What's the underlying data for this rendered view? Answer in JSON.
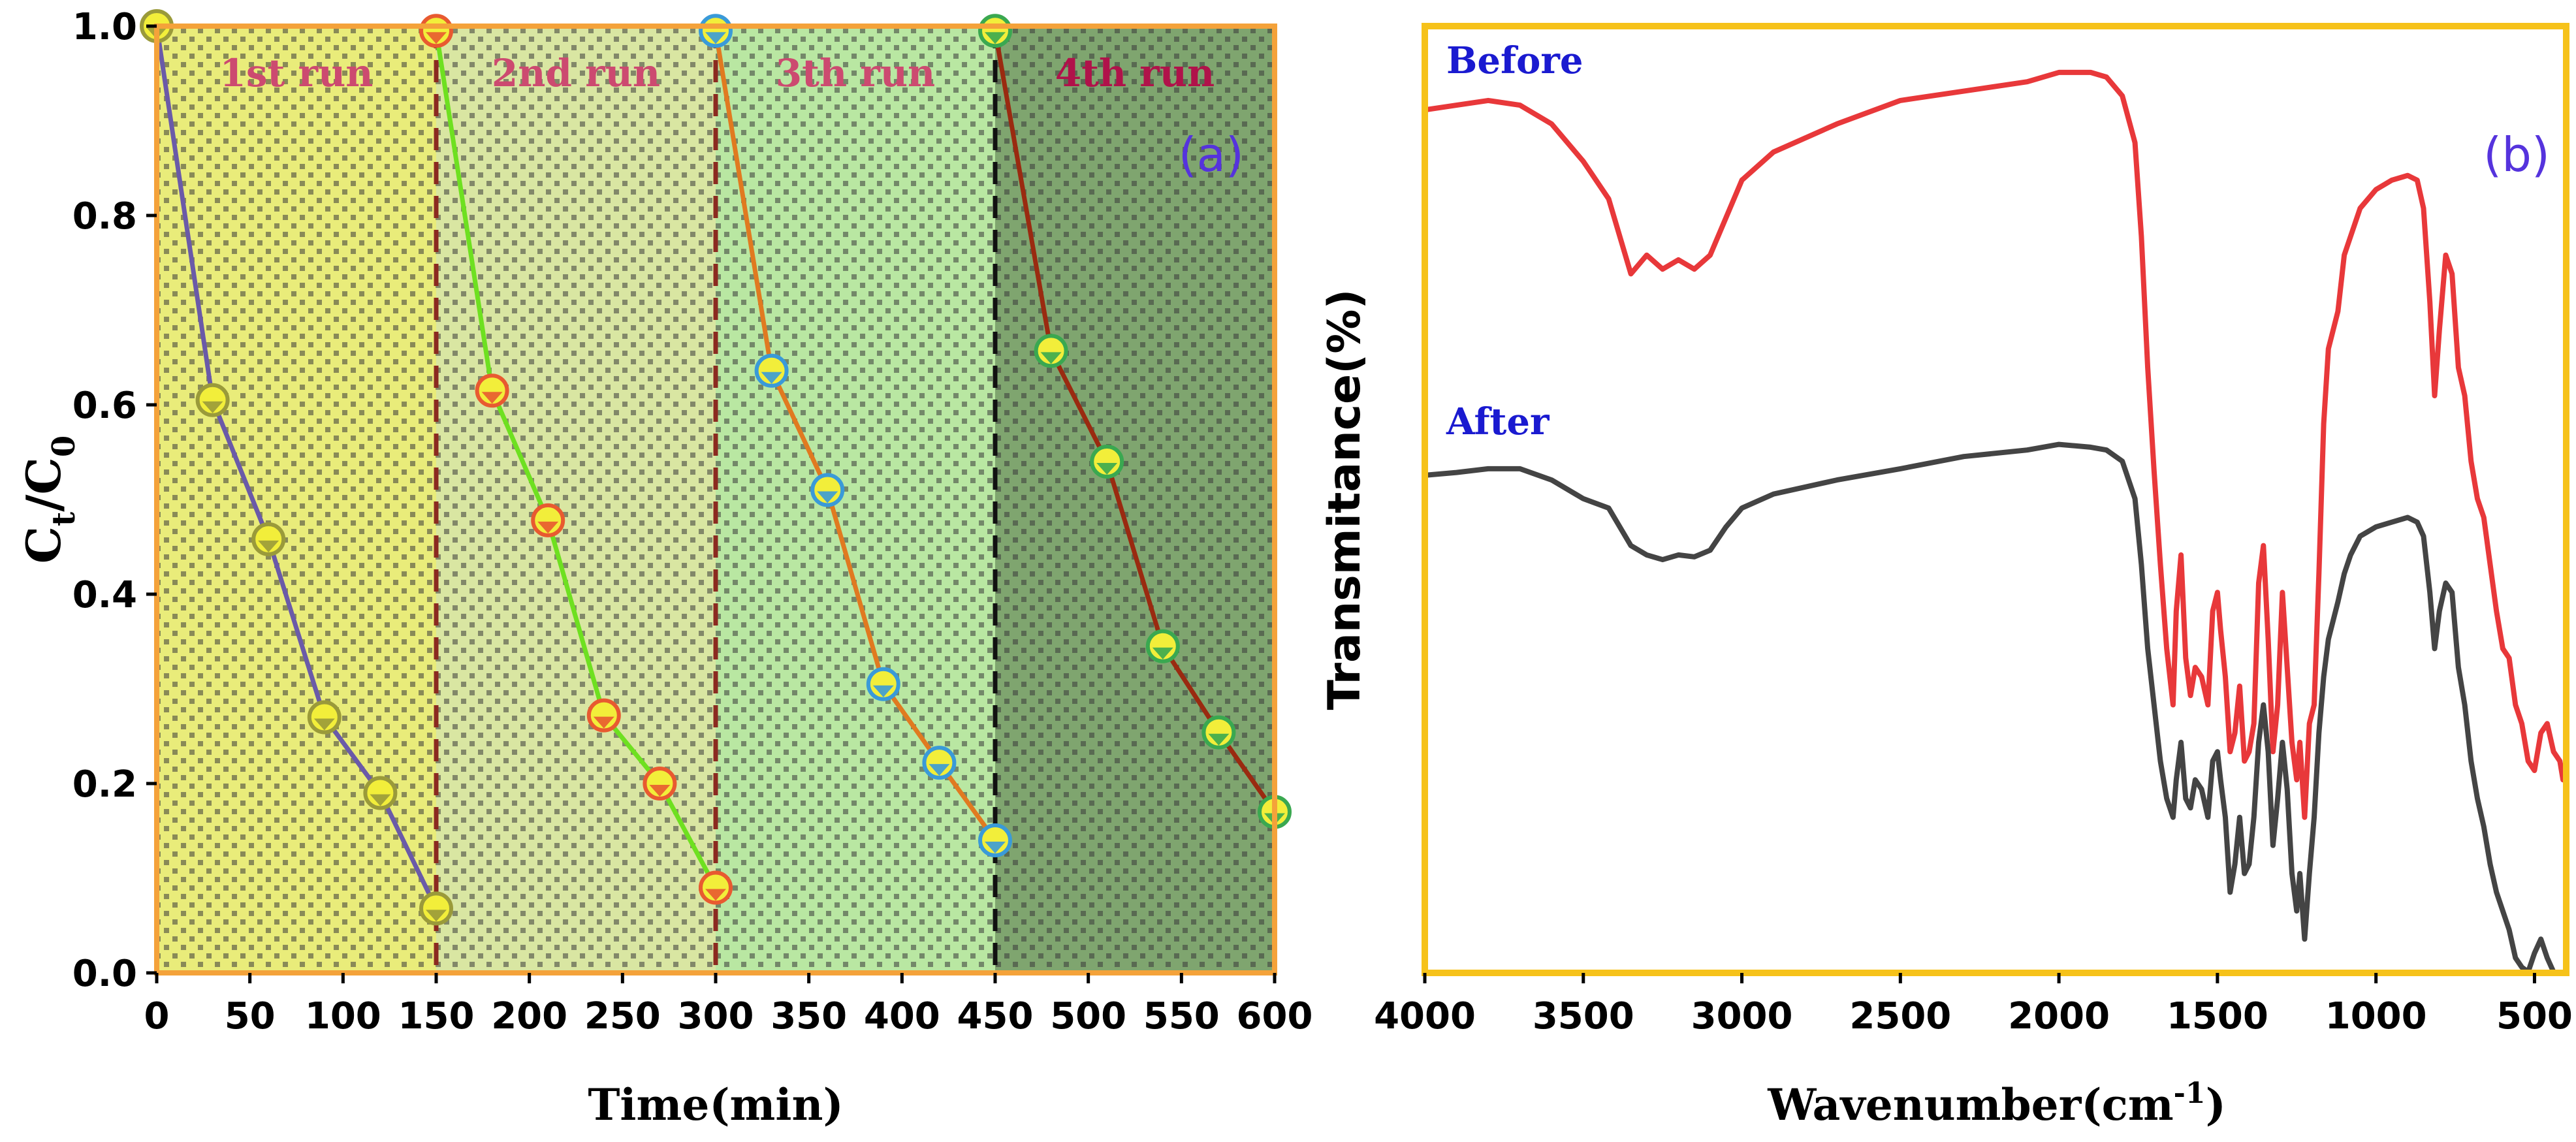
{
  "chart_data": [
    {
      "type": "line",
      "panel_label": "(a)",
      "xlabel": "Time(min)",
      "ylabel_main": "C",
      "ylabel_sub1": "t",
      "ylabel_mid": "/C",
      "ylabel_sub2": "0",
      "xlim": [
        0,
        600
      ],
      "ylim": [
        0,
        1.0
      ],
      "xticks": [
        0,
        50,
        100,
        150,
        200,
        250,
        300,
        350,
        400,
        450,
        500,
        550,
        600
      ],
      "yticks": [
        0.0,
        0.2,
        0.4,
        0.6,
        0.8,
        1.0
      ],
      "regions": [
        {
          "label": "1st run",
          "x0": 0,
          "x1": 150,
          "color": "#e9ec7a"
        },
        {
          "label": "2nd run",
          "x0": 150,
          "x1": 300,
          "color": "#d9e6a2"
        },
        {
          "label": "3th run",
          "x0": 300,
          "x1": 450,
          "color": "#b9e7a2"
        },
        {
          "label": "4th run",
          "x0": 450,
          "x1": 600,
          "color": "#7fa56f"
        }
      ],
      "dividers": [
        {
          "x": 150,
          "color": "#8b2a20"
        },
        {
          "x": 300,
          "color": "#8b2a20"
        },
        {
          "x": 450,
          "color": "#111111"
        }
      ],
      "series": [
        {
          "name": "1st run",
          "color": "#6a5aa8",
          "marker_color": "#9a9a3a",
          "x": [
            0,
            30,
            60,
            90,
            120,
            150
          ],
          "y": [
            1.0,
            0.605,
            0.458,
            0.27,
            0.19,
            0.068
          ]
        },
        {
          "name": "2nd run",
          "color": "#6ee020",
          "marker_color": "#e85a30",
          "x": [
            150,
            180,
            210,
            240,
            270,
            300
          ],
          "y": [
            0.995,
            0.615,
            0.478,
            0.272,
            0.2,
            0.09
          ]
        },
        {
          "name": "3th run",
          "color": "#e07a20",
          "marker_color": "#3a9ad8",
          "x": [
            300,
            330,
            360,
            390,
            420,
            450
          ],
          "y": [
            0.995,
            0.636,
            0.51,
            0.305,
            0.222,
            0.14
          ]
        },
        {
          "name": "4th run",
          "color": "#9a2a10",
          "marker_color": "#3aa850",
          "x": [
            450,
            480,
            510,
            540,
            570,
            600
          ],
          "y": [
            0.995,
            0.657,
            0.54,
            0.345,
            0.254,
            0.17
          ]
        }
      ]
    },
    {
      "type": "line",
      "panel_label": "(b)",
      "xlabel_main": "Wavenumber(cm",
      "xlabel_sup": "-1",
      "xlabel_end": ")",
      "ylabel": "Transmitance(%)",
      "xlim": [
        4000,
        400
      ],
      "ylim": [
        0,
        1
      ],
      "xticks": [
        4000,
        3500,
        3000,
        2500,
        2000,
        1500,
        1000,
        500
      ],
      "series": [
        {
          "name": "Before",
          "color": "#e8383a",
          "x": [
            4000,
            3900,
            3800,
            3700,
            3600,
            3500,
            3420,
            3350,
            3300,
            3250,
            3200,
            3150,
            3100,
            3050,
            3000,
            2900,
            2700,
            2500,
            2300,
            2100,
            2000,
            1900,
            1850,
            1800,
            1760,
            1740,
            1720,
            1700,
            1680,
            1660,
            1640,
            1630,
            1615,
            1600,
            1585,
            1570,
            1550,
            1530,
            1515,
            1500,
            1490,
            1475,
            1460,
            1445,
            1430,
            1415,
            1400,
            1385,
            1370,
            1355,
            1340,
            1325,
            1310,
            1295,
            1280,
            1265,
            1250,
            1240,
            1225,
            1210,
            1195,
            1180,
            1165,
            1150,
            1120,
            1100,
            1080,
            1050,
            1000,
            950,
            900,
            870,
            850,
            830,
            815,
            800,
            780,
            760,
            740,
            720,
            700,
            680,
            660,
            640,
            620,
            600,
            580,
            560,
            540,
            520,
            500,
            480,
            460,
            440,
            420,
            410
          ],
          "y": [
            0.935,
            0.94,
            0.945,
            0.94,
            0.92,
            0.88,
            0.84,
            0.76,
            0.78,
            0.765,
            0.775,
            0.765,
            0.78,
            0.82,
            0.86,
            0.89,
            0.92,
            0.945,
            0.955,
            0.965,
            0.975,
            0.975,
            0.97,
            0.95,
            0.9,
            0.8,
            0.66,
            0.55,
            0.45,
            0.36,
            0.3,
            0.4,
            0.46,
            0.35,
            0.31,
            0.34,
            0.33,
            0.3,
            0.4,
            0.42,
            0.38,
            0.33,
            0.25,
            0.27,
            0.32,
            0.24,
            0.25,
            0.28,
            0.43,
            0.47,
            0.37,
            0.25,
            0.3,
            0.42,
            0.34,
            0.26,
            0.22,
            0.26,
            0.18,
            0.28,
            0.3,
            0.44,
            0.6,
            0.68,
            0.72,
            0.78,
            0.8,
            0.83,
            0.85,
            0.86,
            0.865,
            0.86,
            0.83,
            0.73,
            0.63,
            0.7,
            0.78,
            0.76,
            0.66,
            0.63,
            0.56,
            0.52,
            0.5,
            0.45,
            0.4,
            0.36,
            0.35,
            0.3,
            0.28,
            0.24,
            0.23,
            0.27,
            0.28,
            0.25,
            0.24,
            0.22
          ]
        },
        {
          "name": "After",
          "color": "#444444",
          "x": [
            4000,
            3900,
            3800,
            3700,
            3600,
            3500,
            3420,
            3350,
            3300,
            3250,
            3200,
            3150,
            3100,
            3050,
            3000,
            2900,
            2700,
            2500,
            2300,
            2100,
            2000,
            1900,
            1850,
            1800,
            1760,
            1740,
            1720,
            1700,
            1680,
            1660,
            1640,
            1630,
            1615,
            1600,
            1585,
            1570,
            1550,
            1530,
            1515,
            1500,
            1490,
            1475,
            1460,
            1445,
            1430,
            1415,
            1400,
            1385,
            1370,
            1355,
            1340,
            1325,
            1310,
            1295,
            1280,
            1265,
            1250,
            1240,
            1225,
            1210,
            1195,
            1180,
            1165,
            1150,
            1120,
            1100,
            1080,
            1050,
            1000,
            950,
            900,
            870,
            850,
            830,
            815,
            800,
            780,
            760,
            740,
            720,
            700,
            680,
            660,
            640,
            620,
            600,
            580,
            560,
            540,
            520,
            500,
            480,
            460,
            440,
            420,
            410
          ],
          "y": [
            0.545,
            0.548,
            0.552,
            0.552,
            0.54,
            0.52,
            0.51,
            0.47,
            0.46,
            0.455,
            0.46,
            0.458,
            0.465,
            0.49,
            0.51,
            0.525,
            0.54,
            0.552,
            0.565,
            0.572,
            0.578,
            0.575,
            0.572,
            0.56,
            0.52,
            0.45,
            0.36,
            0.3,
            0.24,
            0.2,
            0.18,
            0.22,
            0.26,
            0.2,
            0.19,
            0.22,
            0.21,
            0.18,
            0.24,
            0.25,
            0.22,
            0.18,
            0.1,
            0.13,
            0.18,
            0.12,
            0.13,
            0.18,
            0.26,
            0.3,
            0.25,
            0.15,
            0.2,
            0.26,
            0.21,
            0.12,
            0.08,
            0.12,
            0.05,
            0.12,
            0.18,
            0.27,
            0.33,
            0.37,
            0.41,
            0.44,
            0.46,
            0.48,
            0.49,
            0.495,
            0.5,
            0.495,
            0.48,
            0.42,
            0.36,
            0.4,
            0.43,
            0.42,
            0.34,
            0.3,
            0.24,
            0.2,
            0.17,
            0.13,
            0.1,
            0.08,
            0.06,
            0.03,
            0.02,
            0.015,
            0.035,
            0.05,
            0.03,
            0.015,
            0.005,
            0.0
          ]
        }
      ]
    }
  ]
}
